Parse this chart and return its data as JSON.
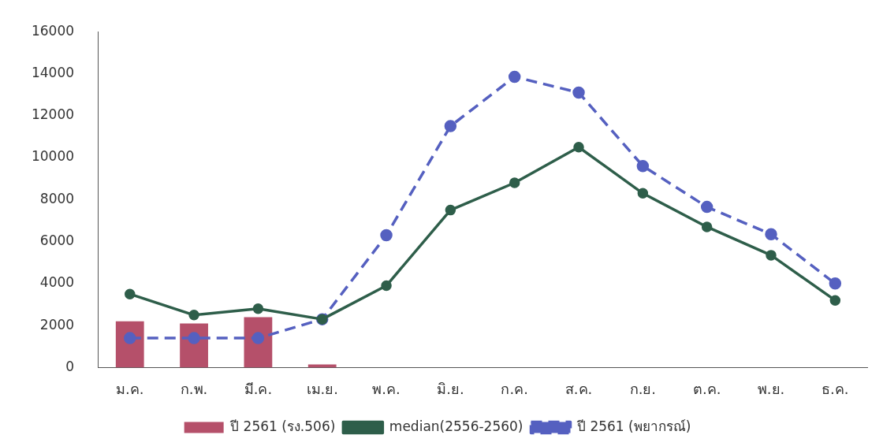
{
  "chart_data": {
    "type": "bar",
    "categories": [
      "ม.ค.",
      "ก.พ.",
      "มี.ค.",
      "เม.ย.",
      "พ.ค.",
      "มิ.ย.",
      "ก.ค.",
      "ส.ค.",
      "ก.ย.",
      "ต.ค.",
      "พ.ย.",
      "ธ.ค."
    ],
    "series": [
      {
        "name": "ปี 2561 (รง.506)",
        "color": "#b5506a",
        "values": [
          2200,
          2100,
          2400,
          150,
          null,
          null,
          null,
          null,
          null,
          null,
          null,
          null
        ]
      },
      {
        "name": "median(2556-2560)",
        "type": "line",
        "color": "#2e5e4a",
        "line_style": "solid",
        "values": [
          3500,
          2500,
          2800,
          2300,
          3900,
          7500,
          8800,
          10500,
          8300,
          6700,
          5350,
          3200
        ]
      },
      {
        "name": "ปี 2561 (พยากรณ์)",
        "type": "line",
        "color": "#5560c0",
        "line_style": "dashed",
        "values": [
          1400,
          1400,
          1400,
          2300,
          6300,
          11500,
          13850,
          13100,
          9600,
          7650,
          6350,
          4000
        ]
      }
    ],
    "ylim": [
      0,
      16000
    ],
    "yticks": [
      0,
      2000,
      4000,
      6000,
      8000,
      10000,
      12000,
      14000,
      16000
    ],
    "grid": false,
    "legend": "bottom",
    "marker": "circle"
  }
}
